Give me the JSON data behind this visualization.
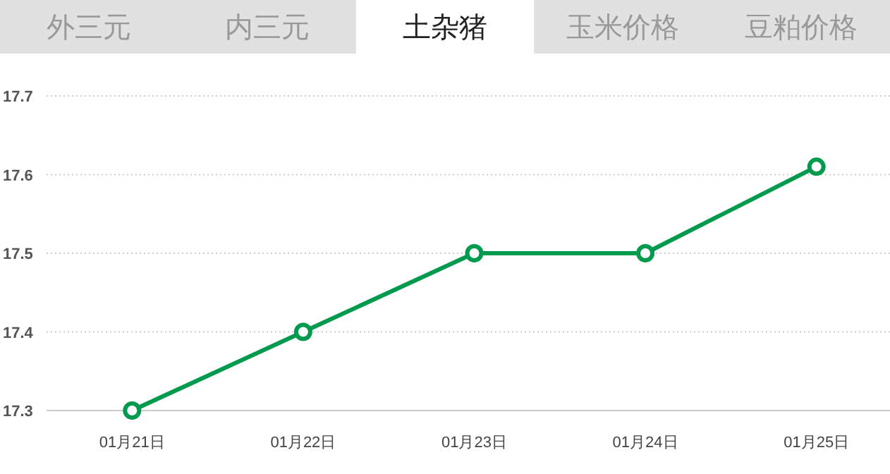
{
  "chart_data": {
    "type": "line",
    "annotations": [
      "外三元",
      "内三元",
      "土杂猪",
      "玉米价格",
      "豆粕价格"
    ],
    "categories": [
      "01月21日",
      "01月22日",
      "01月23日",
      "01月24日",
      "01月25日"
    ],
    "series": [
      {
        "color": "#009a4e",
        "values": [
          17.3,
          17.4,
          17.5,
          17.5,
          17.61
        ]
      }
    ],
    "ylim": [
      17.3,
      17.7
    ],
    "yticks": [
      17.3,
      17.4,
      17.5,
      17.6,
      17.7
    ],
    "grid": "y",
    "marker": "circle",
    "line_style": "solid"
  }
}
